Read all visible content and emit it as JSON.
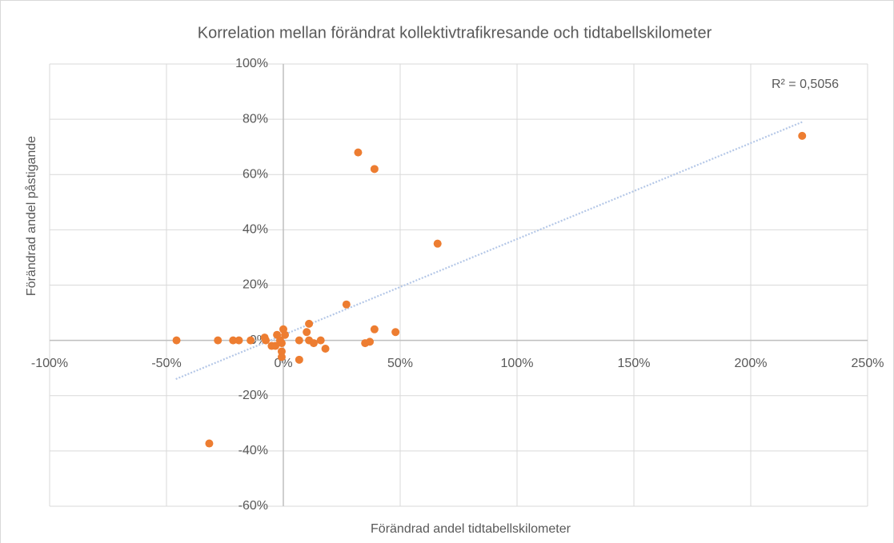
{
  "chart_data": {
    "type": "scatter",
    "title": "Korrelation mellan förändrat kollektivtrafikresande och tidtabellskilometer",
    "x_label": "Förändrad andel tidtabellskilometer",
    "y_label": "Förändrad andel påstigande",
    "annotation": "R² = 0,5056",
    "color": "#ed7d31",
    "grid": true,
    "xlim": [
      -100,
      250
    ],
    "ylim": [
      -60,
      100
    ],
    "xticks": [
      {
        "value": -100,
        "label": "-100%"
      },
      {
        "value": -50,
        "label": "-50%"
      },
      {
        "value": 0,
        "label": "0%"
      },
      {
        "value": 50,
        "label": "50%"
      },
      {
        "value": 100,
        "label": "100%"
      },
      {
        "value": 150,
        "label": "150%"
      },
      {
        "value": 200,
        "label": "200%"
      },
      {
        "value": 250,
        "label": "250%"
      }
    ],
    "yticks": [
      {
        "value": -60,
        "label": "-60%"
      },
      {
        "value": -40,
        "label": "-40%"
      },
      {
        "value": -20,
        "label": "-20%"
      },
      {
        "value": 0,
        "label": "0%"
      },
      {
        "value": 20,
        "label": "20%"
      },
      {
        "value": 40,
        "label": "40%"
      },
      {
        "value": 60,
        "label": "60%"
      },
      {
        "value": 80,
        "label": "80%"
      },
      {
        "value": 100,
        "label": "100%"
      }
    ],
    "x": [
      -45.7,
      -28,
      -21.5,
      -19,
      -14,
      -31.7,
      -8,
      -7.5,
      -5,
      -3.4,
      -2.7,
      -1.4,
      -0.7,
      -0.7,
      -0.7,
      0,
      0.7,
      6.8,
      6.8,
      10,
      11,
      11,
      13,
      16,
      18,
      27,
      32,
      35,
      37,
      39,
      39,
      48,
      66,
      222
    ],
    "values": [
      0,
      0,
      0,
      0,
      0,
      -37.3,
      1,
      0,
      -2,
      -2,
      2,
      0,
      -1,
      -4,
      -6,
      4,
      2,
      0,
      -7,
      3,
      6,
      0,
      -1,
      0,
      -3,
      13,
      68,
      -1,
      -0.5,
      62,
      4,
      3,
      35,
      74
    ],
    "trendline": {
      "color": "#b4c7e7",
      "x": [
        -46,
        222
      ],
      "values": [
        -14,
        79
      ]
    }
  }
}
